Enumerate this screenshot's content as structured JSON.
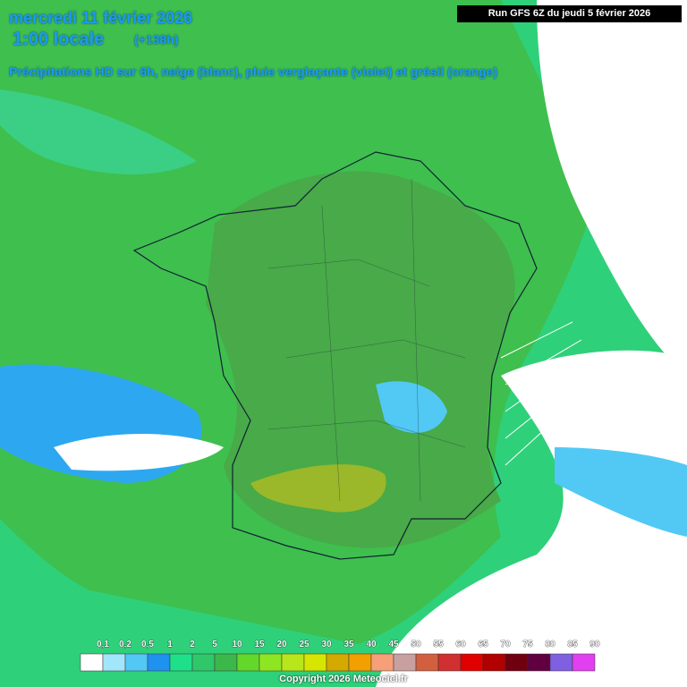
{
  "header": {
    "date": "mercredi 11 février 2026",
    "time": "1:00 locale",
    "lead": "(+138h)",
    "description": "Précipitations HD sur 6h, neige (blanc), pluie verglaçante (violet) et grésil (orange)",
    "run": "Run GFS 6Z du jeudi 5 février 2026"
  },
  "legend": {
    "items": [
      {
        "label": "0,1",
        "color": "#ffffff"
      },
      {
        "label": "0,2",
        "color": "#a2e6fb"
      },
      {
        "label": "0,5",
        "color": "#52c8f5"
      },
      {
        "label": "1",
        "color": "#1f92f0"
      },
      {
        "label": "2",
        "color": "#1fe08a"
      },
      {
        "label": "5",
        "color": "#2ec86a"
      },
      {
        "label": "10",
        "color": "#3cb84a"
      },
      {
        "label": "15",
        "color": "#62d82a"
      },
      {
        "label": "20",
        "color": "#8ee622"
      },
      {
        "label": "25",
        "color": "#b8e61a"
      },
      {
        "label": "30",
        "color": "#d6e600"
      },
      {
        "label": "35",
        "color": "#d4aa00"
      },
      {
        "label": "40",
        "color": "#f2a000"
      },
      {
        "label": "45",
        "color": "#f5a078"
      },
      {
        "label": "50",
        "color": "#c8a0a0"
      },
      {
        "label": "55",
        "color": "#d06040"
      },
      {
        "label": "60",
        "color": "#d03030"
      },
      {
        "label": "65",
        "color": "#e00000"
      },
      {
        "label": "70",
        "color": "#b00000"
      },
      {
        "label": "75",
        "color": "#700010"
      },
      {
        "label": "80",
        "color": "#600040"
      },
      {
        "label": "85",
        "color": "#8060e0"
      },
      {
        "label": "90",
        "color": "#e040f0"
      }
    ]
  },
  "footer": {
    "copyright": "Copyright 2026 Meteociel.fr"
  }
}
